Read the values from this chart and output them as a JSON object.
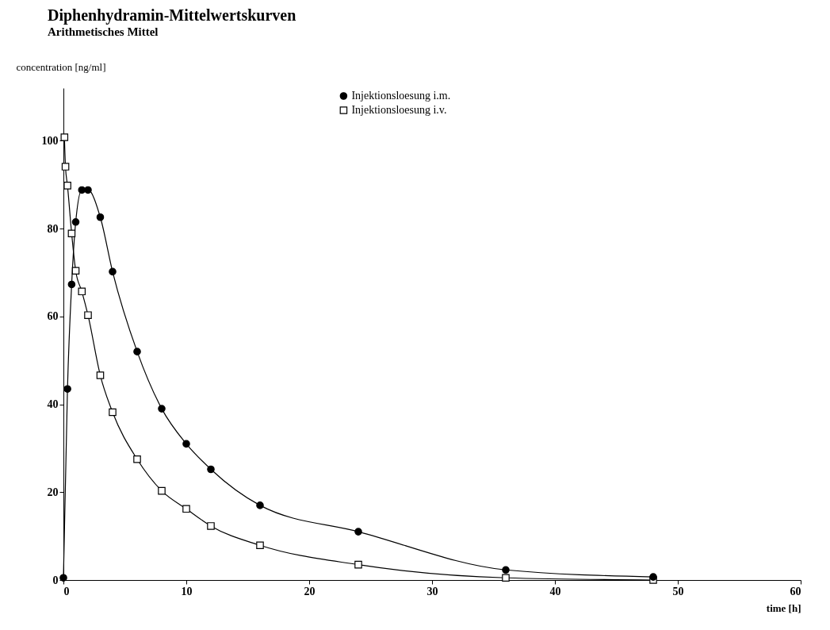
{
  "chart_data": {
    "type": "line",
    "title": "Diphenhydramin-Mittelwertskurven",
    "subtitle": "Arithmetisches Mittel",
    "xlabel": "time [h]",
    "ylabel": "concentration [ng/ml]",
    "xlim": [
      0,
      60
    ],
    "ylim": [
      0,
      112
    ],
    "xticks": [
      0,
      10,
      20,
      30,
      40,
      50,
      60
    ],
    "yticks": [
      0,
      20,
      40,
      60,
      80,
      100
    ],
    "grid": false,
    "legend": "top",
    "line_style": "solid",
    "series": [
      {
        "name": "Injektionsloesung i.m.",
        "color": "#000000",
        "marker": "circle",
        "x": [
          0,
          0.33,
          0.67,
          1,
          1.5,
          2,
          3,
          4,
          6,
          8,
          10,
          12,
          16,
          24,
          36,
          48
        ],
        "values": [
          0.5,
          43.5,
          67.3,
          81.5,
          88.8,
          88.8,
          82.6,
          70.2,
          52,
          39,
          31,
          25.2,
          17,
          11,
          2.3,
          0.7
        ]
      },
      {
        "name": "Injektionsloesung i.v.",
        "color": "#000000",
        "marker": "square",
        "x": [
          0.083,
          0.167,
          0.33,
          0.67,
          1,
          1.5,
          2,
          3,
          4,
          6,
          8,
          10,
          12,
          16,
          24,
          36,
          48
        ],
        "values": [
          100.8,
          94.1,
          89.8,
          78.9,
          70.4,
          65.7,
          60.3,
          46.6,
          38.2,
          27.5,
          20.3,
          16.2,
          12.3,
          7.9,
          3.5,
          0.5,
          0
        ]
      }
    ]
  }
}
